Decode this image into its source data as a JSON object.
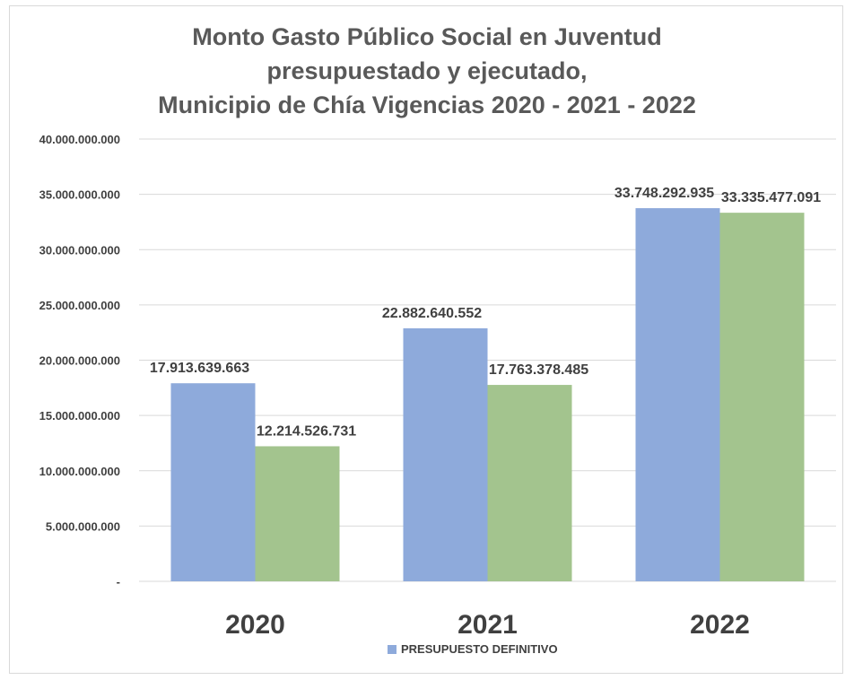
{
  "chart_data": {
    "type": "bar",
    "title_lines": [
      "Monto Gasto Público Social en Juventud",
      "presupuestado  y ejecutado,",
      "Municipio de Chía Vigencias 2020 - 2021 - 2022"
    ],
    "categories": [
      "2020",
      "2021",
      "2022"
    ],
    "series": [
      {
        "name": "PRESUPUESTO DEFINITIVO",
        "color": "#8eaadb",
        "values": [
          17913639663,
          22882640552,
          33748292935
        ],
        "labels": [
          "17.913.639.663",
          "22.882.640.552",
          "33.748.292.935"
        ]
      },
      {
        "color": "#a3c48e",
        "values": [
          12214526731,
          17763378485,
          33335477091
        ],
        "labels": [
          "12.214.526.731",
          "17.763.378.485",
          "33.335.477.091"
        ]
      }
    ],
    "ylim": [
      0,
      40000000000
    ],
    "yticks": [
      0,
      5000000000,
      10000000000,
      15000000000,
      20000000000,
      25000000000,
      30000000000,
      35000000000,
      40000000000
    ],
    "ytick_labels": [
      "-",
      "5.000.000.000",
      "10.000.000.000",
      "15.000.000.000",
      "20.000.000.000",
      "25.000.000.000",
      "30.000.000.000",
      "35.000.000.000",
      "40.000.000.000"
    ],
    "grid": true,
    "legend_position": "bottom"
  }
}
